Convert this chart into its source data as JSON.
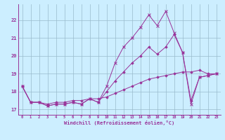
{
  "xlabel": "Windchill (Refroidissement éolien,°C)",
  "bg_color": "#cceeff",
  "line_color": "#993399",
  "grid_color": "#99bbcc",
  "xlim": [
    -0.5,
    23.5
  ],
  "ylim": [
    16.7,
    22.9
  ],
  "yticks": [
    17,
    18,
    19,
    20,
    21,
    22
  ],
  "xticks": [
    0,
    1,
    2,
    3,
    4,
    5,
    6,
    7,
    8,
    9,
    10,
    11,
    12,
    13,
    14,
    15,
    16,
    17,
    18,
    19,
    20,
    21,
    22,
    23
  ],
  "line1_x": [
    0,
    1,
    2,
    3,
    4,
    5,
    6,
    7,
    8,
    9,
    10,
    11,
    12,
    13,
    14,
    15,
    16,
    17,
    18,
    19,
    20,
    21,
    22,
    23
  ],
  "line1_y": [
    18.3,
    17.4,
    17.4,
    17.2,
    17.3,
    17.3,
    17.4,
    17.3,
    17.6,
    17.4,
    18.3,
    19.6,
    20.5,
    21.0,
    21.6,
    22.3,
    21.7,
    22.5,
    21.3,
    20.2,
    17.3,
    18.8,
    18.9,
    19.0
  ],
  "line2_x": [
    0,
    1,
    2,
    3,
    4,
    5,
    6,
    7,
    8,
    9,
    10,
    11,
    12,
    13,
    14,
    15,
    16,
    17,
    18,
    19,
    20,
    21,
    22,
    23
  ],
  "line2_y": [
    18.3,
    17.4,
    17.4,
    17.2,
    17.3,
    17.3,
    17.4,
    17.3,
    17.6,
    17.4,
    18.0,
    18.6,
    19.1,
    19.6,
    20.0,
    20.5,
    20.1,
    20.5,
    21.2,
    20.2,
    17.5,
    18.8,
    18.9,
    19.0
  ],
  "line3_x": [
    0,
    1,
    2,
    3,
    4,
    5,
    6,
    7,
    8,
    9,
    10,
    11,
    12,
    13,
    14,
    15,
    16,
    17,
    18,
    19,
    20,
    21,
    22,
    23
  ],
  "line3_y": [
    18.3,
    17.4,
    17.4,
    17.3,
    17.4,
    17.4,
    17.5,
    17.5,
    17.6,
    17.6,
    17.7,
    17.9,
    18.1,
    18.3,
    18.5,
    18.7,
    18.8,
    18.9,
    19.0,
    19.1,
    19.1,
    19.2,
    19.0,
    19.0
  ]
}
